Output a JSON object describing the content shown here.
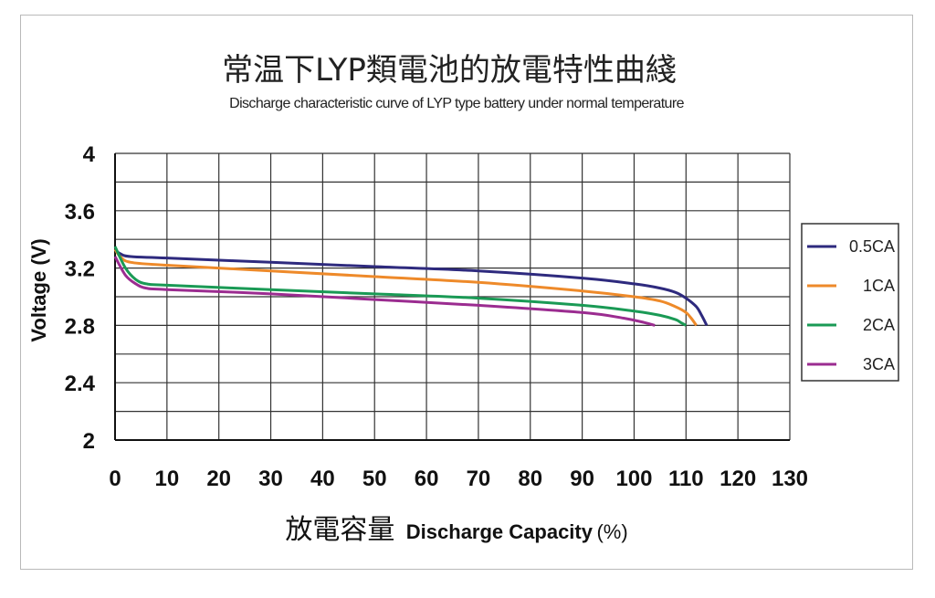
{
  "chart_data": {
    "type": "line",
    "title": "常温下LYP類電池的放電特性曲綫",
    "subtitle": "Discharge characteristic curve of LYP type battery under normal temperature",
    "ylabel": "Voltage (V)",
    "xlabel_cn": "放電容量",
    "xlabel_en": "Discharge Capacity",
    "xlabel_unit": "(%)",
    "xlim": [
      0,
      130
    ],
    "ylim": [
      2,
      4
    ],
    "xticks": [
      "0",
      "10",
      "20",
      "30",
      "40",
      "50",
      "60",
      "70",
      "80",
      "90",
      "100",
      "110",
      "120",
      "130"
    ],
    "yticks": [
      "2",
      "2.4",
      "2.8",
      "3.2",
      "3.6",
      "4"
    ],
    "grid": true,
    "legend_position": "right",
    "series": [
      {
        "name": "0.5CA",
        "color": "#2e2a7e",
        "x": [
          0,
          1,
          3,
          10,
          30,
          50,
          70,
          90,
          100,
          105,
          108,
          110,
          112,
          113,
          114
        ],
        "y": [
          3.33,
          3.3,
          3.28,
          3.27,
          3.24,
          3.21,
          3.18,
          3.13,
          3.09,
          3.06,
          3.03,
          2.99,
          2.93,
          2.87,
          2.8
        ]
      },
      {
        "name": "1CA",
        "color": "#ee8a2a",
        "x": [
          0,
          1,
          3,
          10,
          30,
          50,
          70,
          90,
          100,
          105,
          108,
          110,
          111,
          112
        ],
        "y": [
          3.33,
          3.28,
          3.24,
          3.22,
          3.18,
          3.14,
          3.1,
          3.04,
          3.0,
          2.97,
          2.93,
          2.89,
          2.85,
          2.8
        ]
      },
      {
        "name": "2CA",
        "color": "#1a9a55",
        "x": [
          0,
          2,
          4,
          6,
          10,
          30,
          50,
          70,
          90,
          100,
          105,
          108,
          109,
          110
        ],
        "y": [
          3.35,
          3.2,
          3.12,
          3.09,
          3.08,
          3.05,
          3.02,
          2.99,
          2.94,
          2.9,
          2.87,
          2.84,
          2.82,
          2.8
        ]
      },
      {
        "name": "3CA",
        "color": "#9b2c90",
        "x": [
          0,
          2,
          4,
          6,
          10,
          30,
          50,
          70,
          90,
          98,
          102,
          104
        ],
        "y": [
          3.28,
          3.15,
          3.09,
          3.06,
          3.05,
          3.02,
          2.98,
          2.94,
          2.89,
          2.85,
          2.82,
          2.8
        ]
      }
    ]
  }
}
